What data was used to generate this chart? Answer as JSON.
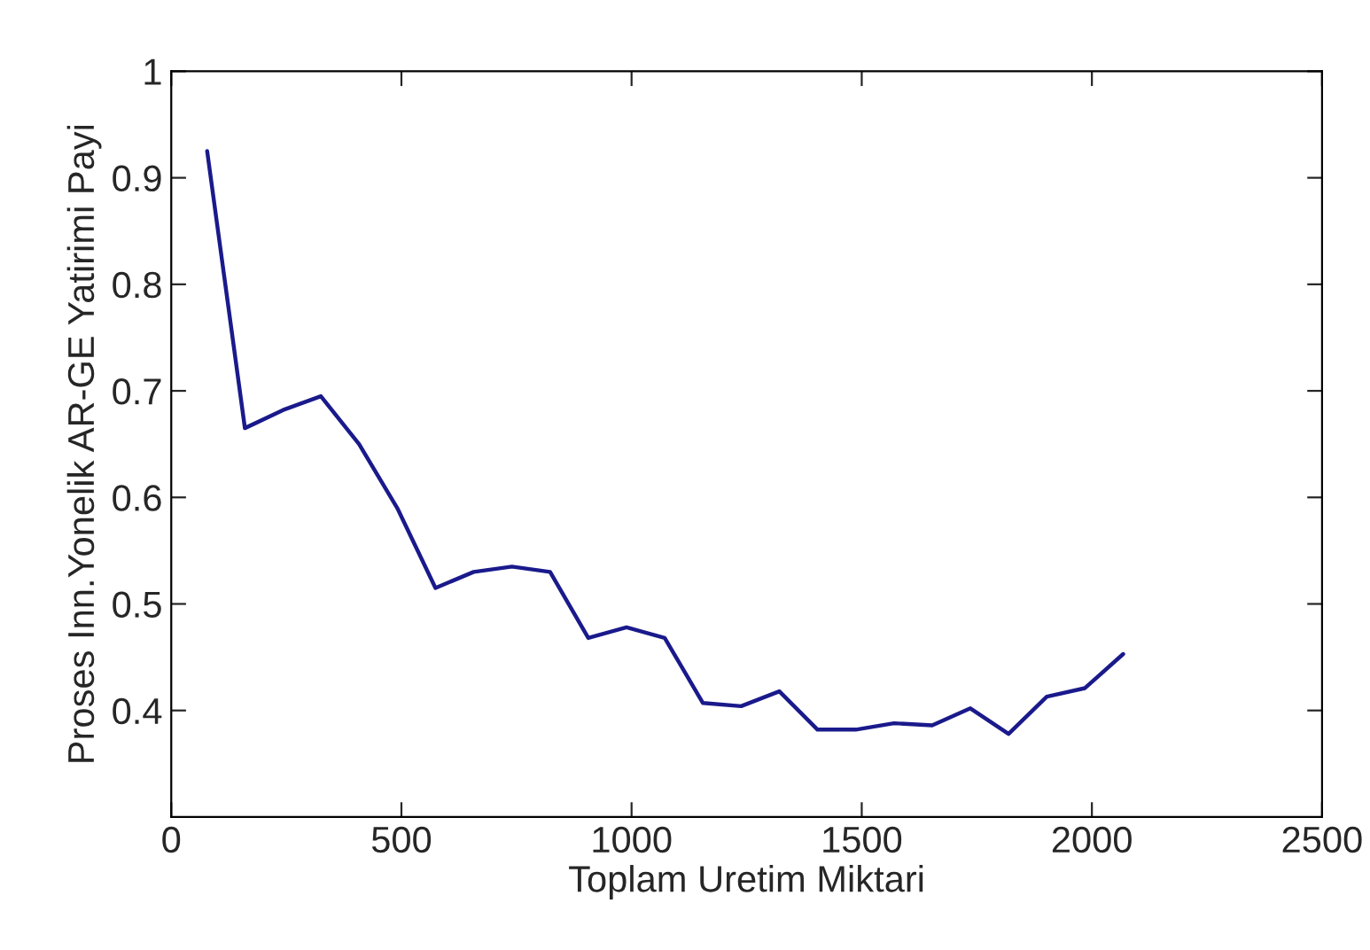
{
  "chart_data": {
    "type": "line",
    "xlabel": "Toplam Uretim Miktari",
    "ylabel": "Proses Inn.Yonelik AR-GE Yatirimi Payi",
    "x": [
      78,
      160,
      243,
      325,
      408,
      491,
      574,
      657,
      740,
      823,
      906,
      989,
      1072,
      1155,
      1238,
      1321,
      1404,
      1487,
      1570,
      1653,
      1736,
      1819,
      1902,
      1985,
      2068
    ],
    "series": [
      {
        "color": "#1a1a8c",
        "values": [
          0.925,
          0.665,
          0.682,
          0.695,
          0.65,
          0.59,
          0.515,
          0.53,
          0.535,
          0.53,
          0.468,
          0.478,
          0.468,
          0.407,
          0.404,
          0.418,
          0.382,
          0.382,
          0.388,
          0.386,
          0.402,
          0.378,
          0.413,
          0.421,
          0.453
        ]
      }
    ],
    "xlim": [
      0,
      2500
    ],
    "ylim": [
      0.3,
      1
    ],
    "xticks": [
      0,
      500,
      1000,
      1500,
      2000,
      2500
    ],
    "yticks": [
      0.4,
      0.5,
      0.6,
      0.7,
      0.8,
      0.9,
      1
    ],
    "grid": false,
    "legend": false,
    "marker": "none",
    "line_style": "solid"
  }
}
